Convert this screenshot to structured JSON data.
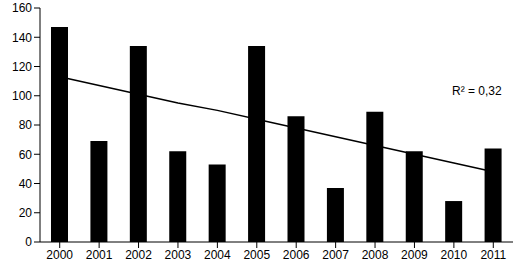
{
  "chart_data": {
    "type": "bar",
    "categories": [
      "2000",
      "2001",
      "2002",
      "2003",
      "2004",
      "2005",
      "2006",
      "2007",
      "2008",
      "2009",
      "2010",
      "2011"
    ],
    "series": [
      {
        "type": "bar",
        "color": "#000000",
        "values": [
          147,
          69,
          134,
          62,
          53,
          134,
          86,
          37,
          89,
          62,
          28,
          64
        ]
      },
      {
        "type": "line",
        "color": "#000000",
        "values": [
          113,
          107,
          101,
          95,
          90,
          84,
          78,
          72,
          66,
          60,
          54,
          48
        ]
      }
    ],
    "ylim": [
      0,
      160
    ],
    "yticks": [
      0,
      20,
      40,
      60,
      80,
      100,
      120,
      140,
      160
    ],
    "grid": false,
    "annotations": [
      "R² = 0,32"
    ]
  }
}
